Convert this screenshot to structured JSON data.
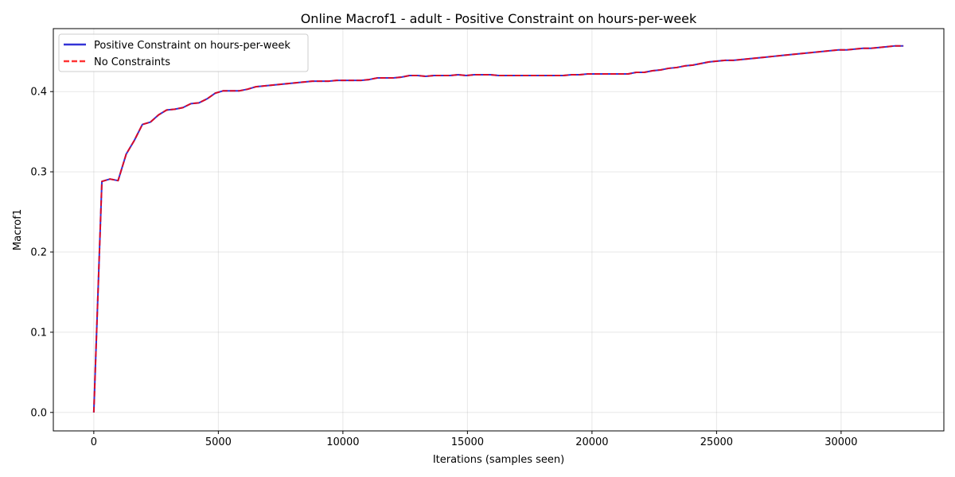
{
  "chart_data": {
    "type": "line",
    "title": "Online Macrof1 - adult - Positive Constraint on hours-per-week",
    "xlabel": "Iterations (samples seen)",
    "ylabel": "Macrof1",
    "xlim": [
      -1625,
      34125
    ],
    "ylim": [
      -0.023,
      0.4785
    ],
    "xticks": [
      0,
      5000,
      10000,
      15000,
      20000,
      25000,
      30000
    ],
    "yticks": [
      0.0,
      0.1,
      0.2,
      0.3,
      0.4
    ],
    "ytick_labels": [
      "0.0",
      "0.1",
      "0.2",
      "0.3",
      "0.4"
    ],
    "grid": true,
    "legend_position": "top-left",
    "x": [
      0,
      325,
      650,
      975,
      1300,
      1625,
      1950,
      2275,
      2600,
      2925,
      3250,
      3575,
      3900,
      4225,
      4550,
      4875,
      5200,
      5525,
      5850,
      6175,
      6500,
      6825,
      7150,
      7475,
      7800,
      8125,
      8450,
      8775,
      9100,
      9425,
      9750,
      10075,
      10400,
      10725,
      11050,
      11375,
      11700,
      12025,
      12350,
      12675,
      13000,
      13325,
      13650,
      13975,
      14300,
      14625,
      14950,
      15275,
      15600,
      15925,
      16250,
      16575,
      16900,
      17225,
      17550,
      17875,
      18200,
      18525,
      18850,
      19175,
      19500,
      19825,
      20150,
      20475,
      20800,
      21125,
      21450,
      21775,
      22100,
      22425,
      22750,
      23075,
      23400,
      23725,
      24050,
      24375,
      24700,
      25025,
      25350,
      25675,
      26000,
      26325,
      26650,
      26975,
      27300,
      27625,
      27950,
      28275,
      28600,
      28925,
      29250,
      29575,
      29900,
      30225,
      30550,
      30875,
      31200,
      31525,
      31850,
      32175,
      32500
    ],
    "series": [
      {
        "name": "Positive Constraint on hours-per-week",
        "color": "#0000cc",
        "style": "solid",
        "values": [
          0.0,
          0.288,
          0.291,
          0.289,
          0.322,
          0.339,
          0.359,
          0.362,
          0.371,
          0.377,
          0.378,
          0.38,
          0.385,
          0.386,
          0.391,
          0.398,
          0.401,
          0.401,
          0.401,
          0.403,
          0.406,
          0.407,
          0.408,
          0.409,
          0.41,
          0.411,
          0.412,
          0.413,
          0.413,
          0.413,
          0.414,
          0.414,
          0.414,
          0.414,
          0.415,
          0.417,
          0.417,
          0.417,
          0.418,
          0.42,
          0.42,
          0.419,
          0.42,
          0.42,
          0.42,
          0.421,
          0.42,
          0.421,
          0.421,
          0.421,
          0.42,
          0.42,
          0.42,
          0.42,
          0.42,
          0.42,
          0.42,
          0.42,
          0.42,
          0.421,
          0.421,
          0.422,
          0.422,
          0.422,
          0.422,
          0.422,
          0.422,
          0.424,
          0.424,
          0.426,
          0.427,
          0.429,
          0.43,
          0.432,
          0.433,
          0.435,
          0.437,
          0.438,
          0.439,
          0.439,
          0.44,
          0.441,
          0.442,
          0.443,
          0.444,
          0.445,
          0.446,
          0.447,
          0.448,
          0.449,
          0.45,
          0.451,
          0.452,
          0.452,
          0.453,
          0.454,
          0.454,
          0.455,
          0.456,
          0.457,
          0.457
        ]
      },
      {
        "name": "No Constraints",
        "color": "#ff0000",
        "style": "dashed",
        "values": [
          0.0,
          0.288,
          0.291,
          0.289,
          0.322,
          0.339,
          0.359,
          0.362,
          0.371,
          0.377,
          0.378,
          0.38,
          0.385,
          0.386,
          0.391,
          0.398,
          0.401,
          0.401,
          0.401,
          0.403,
          0.406,
          0.407,
          0.408,
          0.409,
          0.41,
          0.411,
          0.412,
          0.413,
          0.413,
          0.413,
          0.414,
          0.414,
          0.414,
          0.414,
          0.415,
          0.417,
          0.417,
          0.417,
          0.418,
          0.42,
          0.42,
          0.419,
          0.42,
          0.42,
          0.42,
          0.421,
          0.42,
          0.421,
          0.421,
          0.421,
          0.42,
          0.42,
          0.42,
          0.42,
          0.42,
          0.42,
          0.42,
          0.42,
          0.42,
          0.421,
          0.421,
          0.422,
          0.422,
          0.422,
          0.422,
          0.422,
          0.422,
          0.424,
          0.424,
          0.426,
          0.427,
          0.429,
          0.43,
          0.432,
          0.433,
          0.435,
          0.437,
          0.438,
          0.439,
          0.439,
          0.44,
          0.441,
          0.442,
          0.443,
          0.444,
          0.445,
          0.446,
          0.447,
          0.448,
          0.449,
          0.45,
          0.451,
          0.452,
          0.452,
          0.453,
          0.454,
          0.454,
          0.455,
          0.456,
          0.457,
          0.457
        ]
      }
    ]
  }
}
